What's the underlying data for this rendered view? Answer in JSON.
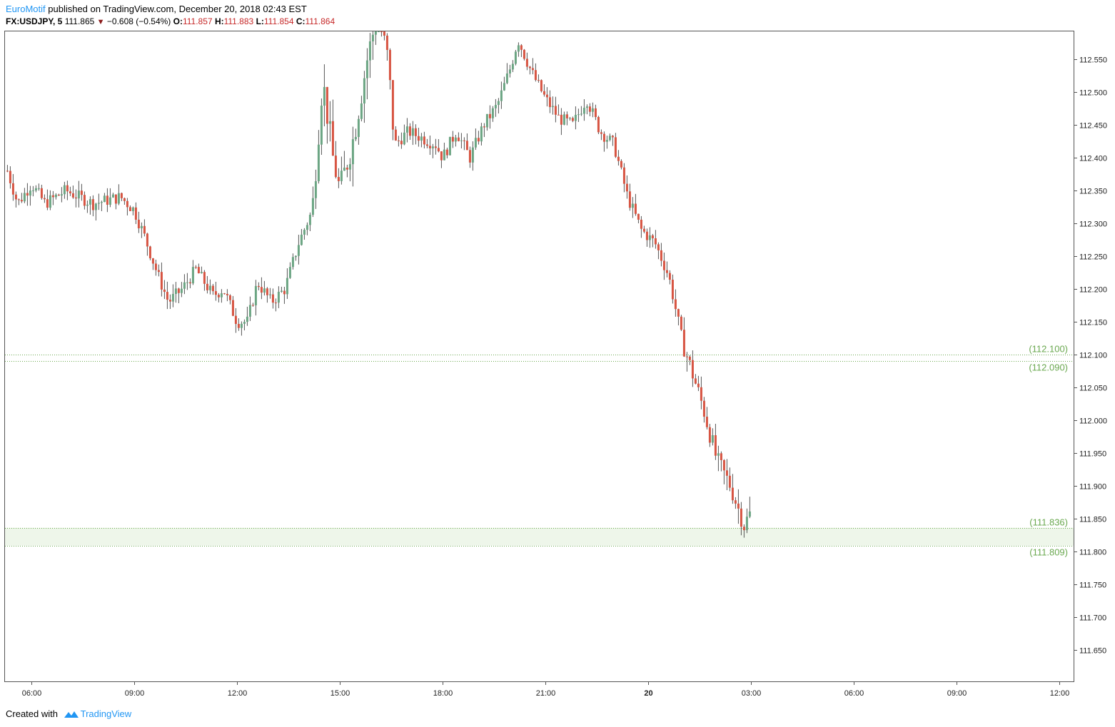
{
  "header": {
    "author": "EuroMotif",
    "published_text": " published on TradingView.com, December 20, 2018 02:43 EST",
    "symbol": "FX:USDJPY, 5",
    "last_price": "111.865",
    "change": "−0.608 (−0.54%)",
    "open_label": "O:",
    "open_value": "111.857",
    "high_label": "H:",
    "high_value": "111.883",
    "low_label": "L:",
    "low_value": "111.854",
    "close_label": "C:",
    "close_value": "111.864"
  },
  "footer": {
    "created_with": "Created with",
    "brand": "TradingView"
  },
  "colors": {
    "up": "#6ba583",
    "down": "#d75442",
    "level": "#6aa84f",
    "zone_fill": "#eef6ea",
    "axis": "#555555",
    "brand": "#2196f3"
  },
  "chart_data": {
    "type": "candlestick",
    "title": "",
    "symbol": "USDJPY",
    "interval_minutes": 5,
    "ylim": [
      111.6,
      112.6
    ],
    "y_ticks": [
      "112.550",
      "112.500",
      "112.450",
      "112.400",
      "112.350",
      "112.300",
      "112.250",
      "112.200",
      "112.150",
      "112.100",
      "112.050",
      "112.000",
      "111.950",
      "111.900",
      "111.850",
      "111.800",
      "111.750",
      "111.700",
      "111.650"
    ],
    "x_ticks": [
      "06:00",
      "09:00",
      "12:00",
      "15:00",
      "18:00",
      "21:00",
      "20",
      "03:00",
      "06:00",
      "09:00",
      "12:00"
    ],
    "x_tick_hours": [
      6,
      9,
      12,
      15,
      18,
      21,
      24,
      27,
      30,
      33,
      36
    ],
    "x_range_hours": [
      5.3,
      36.4
    ],
    "grid": false,
    "horizontal_levels": [
      {
        "value": 112.1,
        "label": "(112.100)"
      },
      {
        "value": 112.09,
        "label": "(112.090)"
      },
      {
        "value": 111.836,
        "label": "(111.836)"
      },
      {
        "value": 111.809,
        "label": "(111.809)"
      }
    ],
    "zones": [
      {
        "from": 111.809,
        "to": 111.836
      }
    ],
    "close_anchors": [
      [
        5.3,
        112.38
      ],
      [
        5.6,
        112.33
      ],
      [
        6.0,
        112.36
      ],
      [
        6.4,
        112.33
      ],
      [
        7.0,
        112.35
      ],
      [
        7.8,
        112.33
      ],
      [
        8.6,
        112.34
      ],
      [
        9.0,
        112.32
      ],
      [
        9.3,
        112.28
      ],
      [
        9.7,
        112.22
      ],
      [
        10.0,
        112.18
      ],
      [
        10.4,
        112.2
      ],
      [
        10.8,
        112.23
      ],
      [
        11.3,
        112.19
      ],
      [
        11.6,
        112.2
      ],
      [
        12.0,
        112.15
      ],
      [
        12.3,
        112.15
      ],
      [
        12.6,
        112.21
      ],
      [
        13.0,
        112.18
      ],
      [
        13.4,
        112.2
      ],
      [
        13.8,
        112.27
      ],
      [
        14.2,
        112.32
      ],
      [
        14.5,
        112.52
      ],
      [
        14.8,
        112.4
      ],
      [
        15.0,
        112.35
      ],
      [
        15.4,
        112.43
      ],
      [
        15.8,
        112.55
      ],
      [
        16.1,
        112.62
      ],
      [
        16.4,
        112.55
      ],
      [
        16.6,
        112.42
      ],
      [
        17.0,
        112.44
      ],
      [
        17.4,
        112.43
      ],
      [
        17.8,
        112.42
      ],
      [
        18.0,
        112.4
      ],
      [
        18.4,
        112.44
      ],
      [
        18.8,
        112.4
      ],
      [
        19.2,
        112.45
      ],
      [
        19.6,
        112.48
      ],
      [
        20.0,
        112.54
      ],
      [
        20.2,
        112.58
      ],
      [
        20.6,
        112.53
      ],
      [
        21.0,
        112.49
      ],
      [
        21.4,
        112.46
      ],
      [
        21.8,
        112.45
      ],
      [
        22.2,
        112.49
      ],
      [
        22.6,
        112.44
      ],
      [
        23.0,
        112.42
      ],
      [
        23.4,
        112.34
      ],
      [
        23.8,
        112.29
      ],
      [
        24.2,
        112.27
      ],
      [
        24.6,
        112.22
      ],
      [
        25.0,
        112.12
      ],
      [
        25.3,
        112.07
      ],
      [
        25.6,
        112.02
      ],
      [
        26.0,
        111.94
      ],
      [
        26.4,
        111.9
      ],
      [
        26.8,
        111.84
      ],
      [
        27.0,
        111.86
      ]
    ]
  }
}
